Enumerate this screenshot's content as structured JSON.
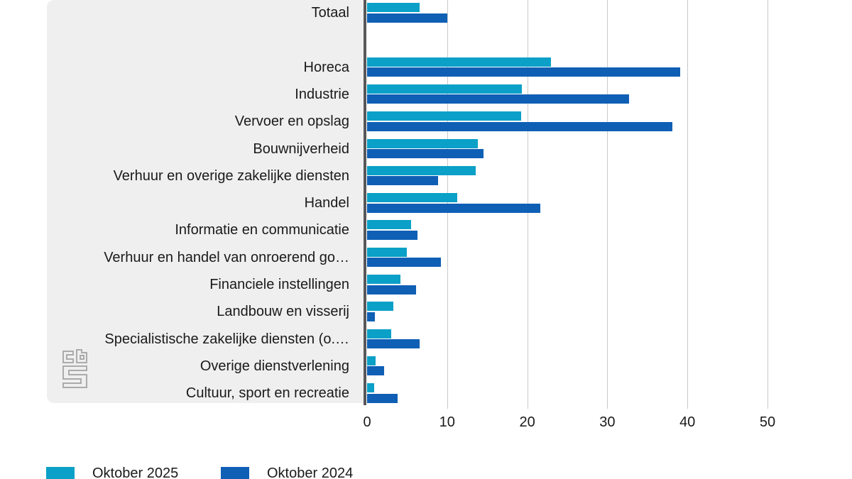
{
  "chart_data": {
    "type": "bar",
    "orientation": "horizontal",
    "categories": [
      "Totaal",
      "Horeca",
      "Industrie",
      "Vervoer en opslag",
      "Bouwnijverheid",
      "Verhuur en overige zakelijke diensten",
      "Handel",
      "Informatie en communicatie",
      "Verhuur en handel van onroerend go…",
      "Financiele instellingen",
      "Landbouw en visserij",
      "Specialistische zakelijke diensten (o.…",
      "Overige dienstverlening",
      "Cultuur, sport en recreatie"
    ],
    "series": [
      {
        "name": "Oktober 2025",
        "color": "#0ba0c7",
        "values": [
          6.6,
          23.0,
          19.3,
          19.2,
          13.8,
          13.6,
          11.3,
          5.5,
          5.0,
          4.2,
          3.3,
          3.0,
          1.1,
          0.9
        ]
      },
      {
        "name": "Oktober 2024",
        "color": "#0f5fb5",
        "values": [
          10.0,
          39.1,
          32.7,
          38.1,
          14.5,
          8.9,
          21.6,
          6.3,
          9.2,
          6.1,
          1.0,
          6.6,
          2.1,
          3.8
        ]
      }
    ],
    "xlim": [
      0,
      50
    ],
    "xticks": [
      0,
      10,
      20,
      30,
      40,
      50
    ],
    "grid": "vertical-gridlines",
    "legend_position": "bottom-left",
    "gap_after_first_category": true
  },
  "colors": {
    "panel_background": "#efefef",
    "axis_line": "#58585a",
    "gridline": "#c9c9c9",
    "text": "#1a1a1a",
    "logo_stroke": "#ababab"
  },
  "logo": {
    "name": "CBS"
  }
}
